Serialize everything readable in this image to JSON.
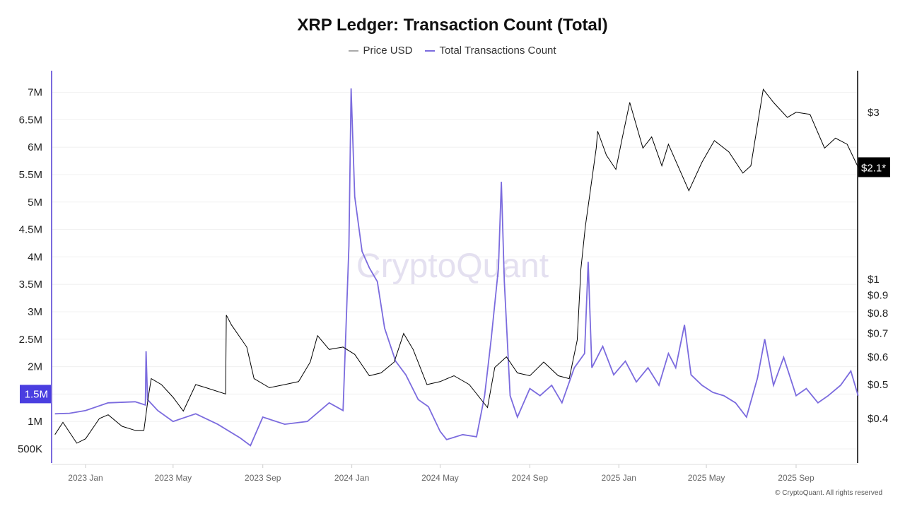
{
  "chart_data": {
    "type": "line",
    "title": "XRP Ledger: Transaction Count (Total)",
    "legend_position": "top-center",
    "grid": true,
    "watermark": "CryptoQuant",
    "copyright": "© CryptoQuant. All rights reserved",
    "x_ticks": [
      "2023 Jan",
      "2023 May",
      "2023 Sep",
      "2024 Jan",
      "2024 May",
      "2024 Sep",
      "2025 Jan",
      "2025 May",
      "2025 Sep"
    ],
    "x_tick_dates": [
      "2023-01-01",
      "2023-05-01",
      "2023-09-01",
      "2024-01-01",
      "2024-05-01",
      "2024-09-01",
      "2025-01-01",
      "2025-05-01",
      "2025-09-01"
    ],
    "left_axis": {
      "ticks": [
        "500K",
        "1M",
        "1.5M",
        "2M",
        "2.5M",
        "3M",
        "3.5M",
        "4M",
        "4.5M",
        "5M",
        "5.5M",
        "6M",
        "6.5M",
        "7M"
      ],
      "tick_values": [
        0.5,
        1,
        1.5,
        2,
        2.5,
        3,
        3.5,
        4,
        4.5,
        5,
        5.5,
        6,
        6.5,
        7
      ],
      "unit": "M",
      "range": [
        0.25,
        7.4
      ],
      "highlight_label": "1.5M"
    },
    "right_axis": {
      "scale": "log",
      "ticks": [
        "$0.4",
        "$0.5",
        "$0.6",
        "$0.7",
        "$0.8",
        "$0.9",
        "$1",
        "$3"
      ],
      "tick_values": [
        0.4,
        0.5,
        0.6,
        0.7,
        0.8,
        0.9,
        1,
        3
      ],
      "current_label": "$2.1*"
    },
    "colors": {
      "price": "#000000",
      "transactions": "#7b6bde",
      "highlight_left": "#4a3ee0",
      "highlight_right": "#000000",
      "grid": "#f0f0f0"
    },
    "series": [
      {
        "name": "Price USD",
        "axis": "right",
        "legend_color": "#aaaaaa",
        "points": [
          [
            "2022-11-20",
            0.36
          ],
          [
            "2022-12-01",
            0.39
          ],
          [
            "2022-12-20",
            0.34
          ],
          [
            "2023-01-01",
            0.35
          ],
          [
            "2023-01-20",
            0.4
          ],
          [
            "2023-02-01",
            0.41
          ],
          [
            "2023-02-20",
            0.38
          ],
          [
            "2023-03-10",
            0.37
          ],
          [
            "2023-03-22",
            0.37
          ],
          [
            "2023-03-28",
            0.46
          ],
          [
            "2023-04-01",
            0.52
          ],
          [
            "2023-04-15",
            0.5
          ],
          [
            "2023-05-01",
            0.46
          ],
          [
            "2023-05-15",
            0.42
          ],
          [
            "2023-06-01",
            0.5
          ],
          [
            "2023-06-15",
            0.49
          ],
          [
            "2023-07-12",
            0.47
          ],
          [
            "2023-07-13",
            0.79
          ],
          [
            "2023-07-20",
            0.74
          ],
          [
            "2023-08-10",
            0.64
          ],
          [
            "2023-08-20",
            0.52
          ],
          [
            "2023-09-10",
            0.49
          ],
          [
            "2023-10-01",
            0.5
          ],
          [
            "2023-10-20",
            0.51
          ],
          [
            "2023-11-05",
            0.58
          ],
          [
            "2023-11-15",
            0.69
          ],
          [
            "2023-12-01",
            0.63
          ],
          [
            "2023-12-20",
            0.64
          ],
          [
            "2024-01-05",
            0.61
          ],
          [
            "2024-01-25",
            0.53
          ],
          [
            "2024-02-10",
            0.54
          ],
          [
            "2024-02-28",
            0.58
          ],
          [
            "2024-03-12",
            0.7
          ],
          [
            "2024-03-25",
            0.63
          ],
          [
            "2024-04-13",
            0.5
          ],
          [
            "2024-05-01",
            0.51
          ],
          [
            "2024-05-20",
            0.53
          ],
          [
            "2024-06-10",
            0.5
          ],
          [
            "2024-07-05",
            0.43
          ],
          [
            "2024-07-15",
            0.56
          ],
          [
            "2024-07-31",
            0.6
          ],
          [
            "2024-08-15",
            0.54
          ],
          [
            "2024-09-01",
            0.53
          ],
          [
            "2024-09-20",
            0.58
          ],
          [
            "2024-10-10",
            0.53
          ],
          [
            "2024-10-25",
            0.52
          ],
          [
            "2024-11-05",
            0.67
          ],
          [
            "2024-11-10",
            1.07
          ],
          [
            "2024-11-16",
            1.41
          ],
          [
            "2024-12-01",
            2.37
          ],
          [
            "2024-12-03",
            2.65
          ],
          [
            "2024-12-15",
            2.26
          ],
          [
            "2024-12-28",
            2.06
          ],
          [
            "2025-01-06",
            2.55
          ],
          [
            "2025-01-16",
            3.2
          ],
          [
            "2025-02-03",
            2.37
          ],
          [
            "2025-02-15",
            2.55
          ],
          [
            "2025-03-01",
            2.11
          ],
          [
            "2025-03-10",
            2.43
          ],
          [
            "2025-04-07",
            1.79
          ],
          [
            "2025-04-25",
            2.16
          ],
          [
            "2025-05-12",
            2.49
          ],
          [
            "2025-06-01",
            2.31
          ],
          [
            "2025-06-20",
            2.01
          ],
          [
            "2025-07-01",
            2.11
          ],
          [
            "2025-07-18",
            3.49
          ],
          [
            "2025-08-01",
            3.2
          ],
          [
            "2025-08-20",
            2.9
          ],
          [
            "2025-09-01",
            3.0
          ],
          [
            "2025-09-20",
            2.96
          ],
          [
            "2025-10-10",
            2.37
          ],
          [
            "2025-10-25",
            2.53
          ],
          [
            "2025-11-10",
            2.43
          ],
          [
            "2025-11-25",
            2.09
          ]
        ]
      },
      {
        "name": "Total Transactions Count",
        "axis": "left",
        "legend_color": "#7b6bde",
        "points": [
          [
            "2022-11-20",
            1.14
          ],
          [
            "2022-12-10",
            1.15
          ],
          [
            "2023-01-01",
            1.2
          ],
          [
            "2023-02-01",
            1.34
          ],
          [
            "2023-03-10",
            1.36
          ],
          [
            "2023-03-24",
            1.3
          ],
          [
            "2023-03-25",
            2.28
          ],
          [
            "2023-03-27",
            1.4
          ],
          [
            "2023-04-10",
            1.2
          ],
          [
            "2023-05-01",
            1.0
          ],
          [
            "2023-06-01",
            1.14
          ],
          [
            "2023-07-01",
            0.95
          ],
          [
            "2023-08-01",
            0.7
          ],
          [
            "2023-08-15",
            0.56
          ],
          [
            "2023-09-01",
            1.08
          ],
          [
            "2023-10-01",
            0.95
          ],
          [
            "2023-11-01",
            1.0
          ],
          [
            "2023-12-01",
            1.34
          ],
          [
            "2023-12-20",
            1.2
          ],
          [
            "2023-12-28",
            4.2
          ],
          [
            "2023-12-31",
            7.07
          ],
          [
            "2024-01-05",
            5.1
          ],
          [
            "2024-01-15",
            4.1
          ],
          [
            "2024-01-25",
            3.8
          ],
          [
            "2024-02-05",
            3.55
          ],
          [
            "2024-02-15",
            2.7
          ],
          [
            "2024-03-01",
            2.1
          ],
          [
            "2024-03-15",
            1.85
          ],
          [
            "2024-04-01",
            1.4
          ],
          [
            "2024-04-15",
            1.27
          ],
          [
            "2024-05-01",
            0.82
          ],
          [
            "2024-05-10",
            0.67
          ],
          [
            "2024-06-01",
            0.76
          ],
          [
            "2024-06-20",
            0.72
          ],
          [
            "2024-07-01",
            1.47
          ],
          [
            "2024-07-10",
            2.5
          ],
          [
            "2024-07-20",
            3.8
          ],
          [
            "2024-07-24",
            5.37
          ],
          [
            "2024-07-28",
            3.55
          ],
          [
            "2024-08-05",
            1.47
          ],
          [
            "2024-08-15",
            1.08
          ],
          [
            "2024-09-01",
            1.6
          ],
          [
            "2024-09-15",
            1.47
          ],
          [
            "2024-10-01",
            1.66
          ],
          [
            "2024-10-15",
            1.34
          ],
          [
            "2024-11-01",
            1.98
          ],
          [
            "2024-11-15",
            2.24
          ],
          [
            "2024-11-20",
            3.91
          ],
          [
            "2024-11-25",
            1.98
          ],
          [
            "2024-12-10",
            2.37
          ],
          [
            "2024-12-25",
            1.85
          ],
          [
            "2025-01-10",
            2.1
          ],
          [
            "2025-01-25",
            1.72
          ],
          [
            "2025-02-10",
            1.98
          ],
          [
            "2025-02-25",
            1.66
          ],
          [
            "2025-03-10",
            2.24
          ],
          [
            "2025-03-20",
            1.98
          ],
          [
            "2025-04-01",
            2.76
          ],
          [
            "2025-04-10",
            1.85
          ],
          [
            "2025-04-25",
            1.66
          ],
          [
            "2025-05-10",
            1.53
          ],
          [
            "2025-05-25",
            1.47
          ],
          [
            "2025-06-10",
            1.34
          ],
          [
            "2025-06-25",
            1.08
          ],
          [
            "2025-07-10",
            1.79
          ],
          [
            "2025-07-20",
            2.5
          ],
          [
            "2025-08-01",
            1.66
          ],
          [
            "2025-08-15",
            2.17
          ],
          [
            "2025-09-01",
            1.47
          ],
          [
            "2025-09-15",
            1.6
          ],
          [
            "2025-10-01",
            1.34
          ],
          [
            "2025-10-15",
            1.47
          ],
          [
            "2025-11-01",
            1.66
          ],
          [
            "2025-11-15",
            1.92
          ],
          [
            "2025-11-25",
            1.47
          ]
        ]
      }
    ]
  }
}
